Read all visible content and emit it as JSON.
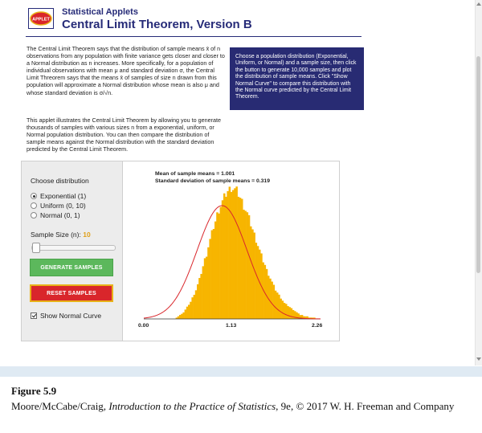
{
  "header": {
    "series": "Statistical Applets",
    "title": "Central Limit Theorem, Version B",
    "logo_text": "APPLET"
  },
  "intro": {
    "paragraph1": "The Central Limit Theorem says that the distribution of sample means x̄ of n observations from any population with finite variance gets closer and closer to a Normal distribution as n increases. More specifically, for a population of individual observations with mean μ and standard deviation σ, the Central Limit Threorem says that the means x̄ of samples of size n drawn from this population will approximate a Normal distribution whose mean is also μ and whose standard deviation is σ/√n.",
    "paragraph2": "This applet illustrates the Central Limit Theorem by allowing you to generate thousands of samples with various sizes n from a exponential, uniform, or Normal population distribution. You can then compare the distribution of sample means against the Normal distribution with the standard deviation predicted by the Central Limit Theorem."
  },
  "instructions": "Choose a population distribution (Exponential, Uniform, or Normal) and a sample size, then click the button to generate 10,000 samples and plot the distribution of sample means. Click \"Show Normal Curve\" to compare this distribution with the Normal curve predicted by the Central Limit Theorem.",
  "controls": {
    "choose_label": "Choose distribution",
    "options": [
      {
        "label": "Exponential (1)",
        "selected": true
      },
      {
        "label": "Uniform (0, 10)",
        "selected": false
      },
      {
        "label": "Normal (0, 1)",
        "selected": false
      }
    ],
    "sample_size_label": "Sample Size (n):",
    "sample_size_value": "10",
    "generate_label": "GENERATE SAMPLES",
    "reset_label": "RESET SAMPLES",
    "show_curve_label": "Show Normal Curve",
    "show_curve_checked": true
  },
  "colors": {
    "header_text": "#262b78",
    "instructions_bg": "#282b73",
    "histogram": "#f7b500",
    "normal_curve": "#d9262b",
    "generate_button": "#5cb85c",
    "reset_button": "#d9262b",
    "sample_size_value": "#e0a019"
  },
  "chart_data": {
    "type": "bar",
    "stats": {
      "mean_label": "Mean of sample means = 1.001",
      "sd_label": "Standard deviation of sample means = 0.319"
    },
    "xlim": [
      0,
      2.26
    ],
    "x_ticks": [
      "0.00",
      "1.13",
      "2.26"
    ],
    "mean": 1.001,
    "sd": 0.319,
    "bins": 100,
    "bin_heights": [
      0,
      0,
      0,
      0,
      0,
      0,
      0,
      0,
      0,
      0,
      0,
      0,
      0,
      0,
      0,
      0,
      0,
      0,
      1,
      2,
      3,
      4,
      5,
      7,
      9,
      11,
      13,
      16,
      19,
      22,
      26,
      30,
      35,
      40,
      45,
      49,
      55,
      60,
      65,
      70,
      74,
      79,
      83,
      86,
      89,
      92,
      95,
      97,
      98,
      100,
      99,
      98,
      97,
      95,
      92,
      89,
      86,
      83,
      80,
      76,
      72,
      68,
      64,
      60,
      56,
      52,
      48,
      44,
      41,
      37,
      34,
      31,
      28,
      25,
      22,
      20,
      18,
      16,
      14,
      12,
      11,
      10,
      9,
      8,
      7,
      6,
      5,
      4,
      3,
      3,
      2,
      2,
      2,
      1,
      1,
      1,
      1,
      0,
      0,
      0
    ],
    "show_normal_curve": true
  },
  "figure": {
    "label": "Figure 5.9",
    "caption_authors": "Moore/McCabe/Craig, ",
    "caption_book": "Introduction to the Practice of Statistics",
    "caption_rest": ", 9e, © 2017 W. H. Freeman and Company"
  }
}
